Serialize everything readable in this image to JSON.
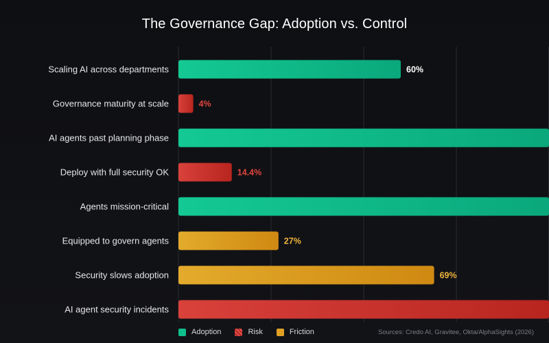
{
  "chart_data": {
    "type": "bar",
    "orientation": "horizontal",
    "title": "The Governance Gap: Adoption vs. Control",
    "xlim": [
      0,
      100
    ],
    "grid": true,
    "categories": [
      "Scaling AI across departments",
      "Governance maturity at scale",
      "AI agents past planning phase",
      "Deploy with full security OK",
      "Agents mission-critical",
      "Equipped to govern agents",
      "Security slows adoption",
      "AI agent security incidents"
    ],
    "values": [
      60,
      4,
      100,
      14.4,
      100,
      27,
      69,
      100
    ],
    "value_labels": [
      "60%",
      "4%",
      "",
      "14.4%",
      "",
      "27%",
      "69%",
      ""
    ],
    "groups": [
      "Adoption",
      "Risk",
      "Adoption",
      "Risk",
      "Adoption",
      "Friction",
      "Friction",
      "Risk"
    ],
    "legend": {
      "placement": "bottom",
      "entries": [
        {
          "name": "Adoption",
          "color": "#0fbf8c"
        },
        {
          "name": "Risk",
          "color": "#d63a34"
        },
        {
          "name": "Friction",
          "color": "#e0a024"
        }
      ]
    },
    "colors": {
      "Adoption": "#0fbf8c",
      "Risk": "#d63a34",
      "Friction": "#e0a024",
      "label_Adoption": "#ffffff",
      "label_Risk": "#e0453e",
      "label_Friction": "#f0b43c"
    }
  },
  "sources": "Sources: Credo AI, Gravitee, Okta/AlphaSights (2026)"
}
